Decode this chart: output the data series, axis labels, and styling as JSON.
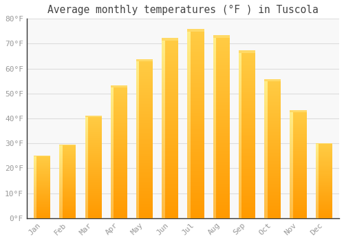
{
  "title": "Average monthly temperatures (°F ) in Tuscola",
  "months": [
    "Jan",
    "Feb",
    "Mar",
    "Apr",
    "May",
    "Jun",
    "Jul",
    "Aug",
    "Sep",
    "Oct",
    "Nov",
    "Dec"
  ],
  "values": [
    25,
    29.5,
    41,
    53,
    63.5,
    72,
    75.5,
    73,
    67,
    55.5,
    43,
    30
  ],
  "bar_color_top": "#FFCC33",
  "bar_color_bottom": "#FF9900",
  "bar_color_left": "#FFD95C",
  "background_color": "#FFFFFF",
  "plot_bg_color": "#F8F8F8",
  "ylim": [
    0,
    80
  ],
  "yticks": [
    0,
    10,
    20,
    30,
    40,
    50,
    60,
    70,
    80
  ],
  "ytick_labels": [
    "0°F",
    "10°F",
    "20°F",
    "30°F",
    "40°F",
    "50°F",
    "60°F",
    "70°F",
    "80°F"
  ],
  "grid_color": "#DDDDDD",
  "title_fontsize": 10.5,
  "tick_fontsize": 8,
  "tick_color": "#999999",
  "spine_color": "#CCCCCC",
  "bar_width": 0.65
}
